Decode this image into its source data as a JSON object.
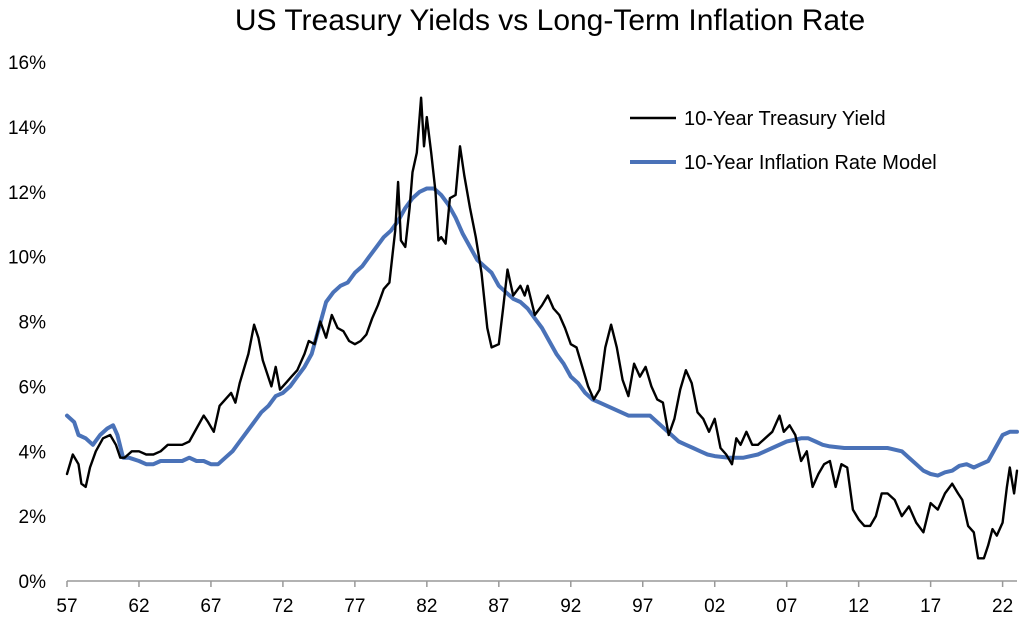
{
  "chart_data": {
    "type": "line",
    "title": "US Treasury Yields vs Long-Term Inflation Rate",
    "xlabel": "",
    "ylabel": "",
    "xlim": [
      1957,
      2023
    ],
    "ylim": [
      0,
      16
    ],
    "x_tick_values": [
      1957,
      1962,
      1967,
      1972,
      1977,
      1982,
      1987,
      1992,
      1997,
      2002,
      2007,
      2012,
      2017,
      2022
    ],
    "x_tick_labels": [
      "57",
      "62",
      "67",
      "72",
      "77",
      "82",
      "87",
      "92",
      "97",
      "02",
      "07",
      "12",
      "17",
      "22"
    ],
    "y_tick_values": [
      0,
      2,
      4,
      6,
      8,
      10,
      12,
      14,
      16
    ],
    "y_tick_labels": [
      "0%",
      "2%",
      "4%",
      "6%",
      "8%",
      "10%",
      "12%",
      "14%",
      "16%"
    ],
    "grid": false,
    "legend_position": "top-right",
    "series": [
      {
        "name": "10-Year Treasury Yield",
        "color": "#000000",
        "points": [
          [
            1957.0,
            3.3
          ],
          [
            1957.4,
            3.9
          ],
          [
            1957.8,
            3.6
          ],
          [
            1958.0,
            3.0
          ],
          [
            1958.3,
            2.9
          ],
          [
            1958.6,
            3.5
          ],
          [
            1959.0,
            4.0
          ],
          [
            1959.5,
            4.4
          ],
          [
            1960.0,
            4.5
          ],
          [
            1960.4,
            4.2
          ],
          [
            1960.7,
            3.8
          ],
          [
            1961.0,
            3.8
          ],
          [
            1961.5,
            4.0
          ],
          [
            1962.0,
            4.0
          ],
          [
            1962.5,
            3.9
          ],
          [
            1963.0,
            3.9
          ],
          [
            1963.5,
            4.0
          ],
          [
            1964.0,
            4.2
          ],
          [
            1964.5,
            4.2
          ],
          [
            1965.0,
            4.2
          ],
          [
            1965.5,
            4.3
          ],
          [
            1966.0,
            4.7
          ],
          [
            1966.5,
            5.1
          ],
          [
            1966.8,
            4.9
          ],
          [
            1967.2,
            4.6
          ],
          [
            1967.6,
            5.4
          ],
          [
            1968.0,
            5.6
          ],
          [
            1968.4,
            5.8
          ],
          [
            1968.7,
            5.5
          ],
          [
            1969.0,
            6.1
          ],
          [
            1969.6,
            7.0
          ],
          [
            1970.0,
            7.9
          ],
          [
            1970.3,
            7.5
          ],
          [
            1970.6,
            6.8
          ],
          [
            1970.9,
            6.4
          ],
          [
            1971.2,
            6.0
          ],
          [
            1971.5,
            6.6
          ],
          [
            1971.8,
            5.9
          ],
          [
            1972.2,
            6.1
          ],
          [
            1972.6,
            6.3
          ],
          [
            1973.0,
            6.5
          ],
          [
            1973.5,
            7.0
          ],
          [
            1973.8,
            7.4
          ],
          [
            1974.2,
            7.3
          ],
          [
            1974.6,
            8.0
          ],
          [
            1975.0,
            7.5
          ],
          [
            1975.4,
            8.2
          ],
          [
            1975.8,
            7.8
          ],
          [
            1976.2,
            7.7
          ],
          [
            1976.6,
            7.4
          ],
          [
            1977.0,
            7.3
          ],
          [
            1977.4,
            7.4
          ],
          [
            1977.8,
            7.6
          ],
          [
            1978.2,
            8.1
          ],
          [
            1978.6,
            8.5
          ],
          [
            1979.0,
            9.0
          ],
          [
            1979.4,
            9.2
          ],
          [
            1979.6,
            10.0
          ],
          [
            1979.8,
            10.8
          ],
          [
            1980.0,
            12.3
          ],
          [
            1980.2,
            10.5
          ],
          [
            1980.5,
            10.3
          ],
          [
            1980.8,
            11.5
          ],
          [
            1981.0,
            12.6
          ],
          [
            1981.3,
            13.2
          ],
          [
            1981.6,
            14.9
          ],
          [
            1981.8,
            13.4
          ],
          [
            1982.0,
            14.3
          ],
          [
            1982.3,
            13.2
          ],
          [
            1982.6,
            12.0
          ],
          [
            1982.8,
            10.5
          ],
          [
            1983.0,
            10.6
          ],
          [
            1983.3,
            10.4
          ],
          [
            1983.6,
            11.8
          ],
          [
            1984.0,
            11.9
          ],
          [
            1984.3,
            13.4
          ],
          [
            1984.6,
            12.5
          ],
          [
            1985.0,
            11.5
          ],
          [
            1985.4,
            10.6
          ],
          [
            1985.8,
            9.5
          ],
          [
            1986.2,
            7.8
          ],
          [
            1986.5,
            7.2
          ],
          [
            1987.0,
            7.3
          ],
          [
            1987.3,
            8.4
          ],
          [
            1987.6,
            9.6
          ],
          [
            1988.0,
            8.8
          ],
          [
            1988.5,
            9.1
          ],
          [
            1988.8,
            8.8
          ],
          [
            1989.0,
            9.1
          ],
          [
            1989.5,
            8.2
          ],
          [
            1990.0,
            8.5
          ],
          [
            1990.4,
            8.8
          ],
          [
            1990.8,
            8.4
          ],
          [
            1991.2,
            8.2
          ],
          [
            1991.6,
            7.8
          ],
          [
            1992.0,
            7.3
          ],
          [
            1992.4,
            7.2
          ],
          [
            1992.8,
            6.6
          ],
          [
            1993.2,
            6.0
          ],
          [
            1993.6,
            5.6
          ],
          [
            1994.0,
            5.9
          ],
          [
            1994.4,
            7.2
          ],
          [
            1994.8,
            7.9
          ],
          [
            1995.2,
            7.2
          ],
          [
            1995.6,
            6.2
          ],
          [
            1996.0,
            5.7
          ],
          [
            1996.4,
            6.7
          ],
          [
            1996.8,
            6.3
          ],
          [
            1997.2,
            6.6
          ],
          [
            1997.6,
            6.0
          ],
          [
            1998.0,
            5.6
          ],
          [
            1998.4,
            5.5
          ],
          [
            1998.8,
            4.5
          ],
          [
            1999.2,
            5.0
          ],
          [
            1999.6,
            5.9
          ],
          [
            2000.0,
            6.5
          ],
          [
            2000.4,
            6.1
          ],
          [
            2000.8,
            5.2
          ],
          [
            2001.2,
            5.0
          ],
          [
            2001.6,
            4.6
          ],
          [
            2002.0,
            5.0
          ],
          [
            2002.4,
            4.1
          ],
          [
            2002.8,
            3.9
          ],
          [
            2003.2,
            3.6
          ],
          [
            2003.5,
            4.4
          ],
          [
            2003.8,
            4.2
          ],
          [
            2004.2,
            4.6
          ],
          [
            2004.6,
            4.2
          ],
          [
            2005.0,
            4.2
          ],
          [
            2005.5,
            4.4
          ],
          [
            2006.0,
            4.6
          ],
          [
            2006.5,
            5.1
          ],
          [
            2006.8,
            4.6
          ],
          [
            2007.2,
            4.8
          ],
          [
            2007.6,
            4.5
          ],
          [
            2008.0,
            3.7
          ],
          [
            2008.4,
            4.0
          ],
          [
            2008.8,
            2.9
          ],
          [
            2009.2,
            3.3
          ],
          [
            2009.6,
            3.6
          ],
          [
            2010.0,
            3.7
          ],
          [
            2010.4,
            2.9
          ],
          [
            2010.8,
            3.6
          ],
          [
            2011.2,
            3.5
          ],
          [
            2011.6,
            2.2
          ],
          [
            2012.0,
            1.9
          ],
          [
            2012.4,
            1.7
          ],
          [
            2012.8,
            1.7
          ],
          [
            2013.2,
            2.0
          ],
          [
            2013.6,
            2.7
          ],
          [
            2014.0,
            2.7
          ],
          [
            2014.5,
            2.5
          ],
          [
            2015.0,
            2.0
          ],
          [
            2015.5,
            2.3
          ],
          [
            2016.0,
            1.8
          ],
          [
            2016.5,
            1.5
          ],
          [
            2017.0,
            2.4
          ],
          [
            2017.5,
            2.2
          ],
          [
            2018.0,
            2.7
          ],
          [
            2018.5,
            3.0
          ],
          [
            2018.9,
            2.7
          ],
          [
            2019.2,
            2.5
          ],
          [
            2019.6,
            1.7
          ],
          [
            2020.0,
            1.5
          ],
          [
            2020.3,
            0.7
          ],
          [
            2020.7,
            0.7
          ],
          [
            2021.0,
            1.1
          ],
          [
            2021.3,
            1.6
          ],
          [
            2021.6,
            1.4
          ],
          [
            2022.0,
            1.8
          ],
          [
            2022.3,
            2.9
          ],
          [
            2022.5,
            3.5
          ],
          [
            2022.8,
            2.7
          ],
          [
            2023.0,
            3.4
          ]
        ]
      },
      {
        "name": "10-Year Inflation Rate Model",
        "color": "#4a72b8",
        "points": [
          [
            1957.0,
            5.1
          ],
          [
            1957.5,
            4.9
          ],
          [
            1957.8,
            4.5
          ],
          [
            1958.3,
            4.4
          ],
          [
            1958.8,
            4.2
          ],
          [
            1959.3,
            4.5
          ],
          [
            1959.8,
            4.7
          ],
          [
            1960.2,
            4.8
          ],
          [
            1960.5,
            4.5
          ],
          [
            1960.9,
            3.8
          ],
          [
            1961.3,
            3.8
          ],
          [
            1962.0,
            3.7
          ],
          [
            1962.5,
            3.6
          ],
          [
            1963.0,
            3.6
          ],
          [
            1963.5,
            3.7
          ],
          [
            1964.0,
            3.7
          ],
          [
            1965.0,
            3.7
          ],
          [
            1965.5,
            3.8
          ],
          [
            1966.0,
            3.7
          ],
          [
            1966.5,
            3.7
          ],
          [
            1967.0,
            3.6
          ],
          [
            1967.5,
            3.6
          ],
          [
            1968.0,
            3.8
          ],
          [
            1968.5,
            4.0
          ],
          [
            1969.0,
            4.3
          ],
          [
            1969.5,
            4.6
          ],
          [
            1970.0,
            4.9
          ],
          [
            1970.5,
            5.2
          ],
          [
            1971.0,
            5.4
          ],
          [
            1971.5,
            5.7
          ],
          [
            1972.0,
            5.8
          ],
          [
            1972.5,
            6.0
          ],
          [
            1973.0,
            6.3
          ],
          [
            1973.5,
            6.6
          ],
          [
            1974.0,
            7.0
          ],
          [
            1974.5,
            7.8
          ],
          [
            1975.0,
            8.6
          ],
          [
            1975.5,
            8.9
          ],
          [
            1976.0,
            9.1
          ],
          [
            1976.5,
            9.2
          ],
          [
            1977.0,
            9.5
          ],
          [
            1977.5,
            9.7
          ],
          [
            1978.0,
            10.0
          ],
          [
            1978.5,
            10.3
          ],
          [
            1979.0,
            10.6
          ],
          [
            1979.5,
            10.8
          ],
          [
            1980.0,
            11.1
          ],
          [
            1980.5,
            11.5
          ],
          [
            1981.0,
            11.8
          ],
          [
            1981.5,
            12.0
          ],
          [
            1982.0,
            12.1
          ],
          [
            1982.5,
            12.1
          ],
          [
            1983.0,
            11.9
          ],
          [
            1983.5,
            11.6
          ],
          [
            1984.0,
            11.2
          ],
          [
            1984.5,
            10.7
          ],
          [
            1985.0,
            10.3
          ],
          [
            1985.5,
            9.9
          ],
          [
            1986.0,
            9.7
          ],
          [
            1986.5,
            9.5
          ],
          [
            1987.0,
            9.1
          ],
          [
            1987.5,
            8.9
          ],
          [
            1988.0,
            8.7
          ],
          [
            1988.5,
            8.6
          ],
          [
            1989.0,
            8.4
          ],
          [
            1989.5,
            8.1
          ],
          [
            1990.0,
            7.8
          ],
          [
            1990.5,
            7.4
          ],
          [
            1991.0,
            7.0
          ],
          [
            1991.5,
            6.7
          ],
          [
            1992.0,
            6.3
          ],
          [
            1992.5,
            6.1
          ],
          [
            1993.0,
            5.8
          ],
          [
            1993.5,
            5.6
          ],
          [
            1994.0,
            5.5
          ],
          [
            1994.5,
            5.4
          ],
          [
            1995.0,
            5.3
          ],
          [
            1995.5,
            5.2
          ],
          [
            1996.0,
            5.1
          ],
          [
            1997.0,
            5.1
          ],
          [
            1997.5,
            5.1
          ],
          [
            1998.0,
            4.9
          ],
          [
            1998.5,
            4.7
          ],
          [
            1999.0,
            4.5
          ],
          [
            1999.5,
            4.3
          ],
          [
            2000.0,
            4.2
          ],
          [
            2000.5,
            4.1
          ],
          [
            2001.0,
            4.0
          ],
          [
            2001.5,
            3.9
          ],
          [
            2002.0,
            3.85
          ],
          [
            2003.0,
            3.8
          ],
          [
            2004.0,
            3.8
          ],
          [
            2005.0,
            3.9
          ],
          [
            2006.0,
            4.1
          ],
          [
            2007.0,
            4.3
          ],
          [
            2007.5,
            4.35
          ],
          [
            2008.0,
            4.4
          ],
          [
            2008.5,
            4.4
          ],
          [
            2009.0,
            4.3
          ],
          [
            2009.5,
            4.2
          ],
          [
            2010.0,
            4.15
          ],
          [
            2011.0,
            4.1
          ],
          [
            2012.0,
            4.1
          ],
          [
            2013.0,
            4.1
          ],
          [
            2014.0,
            4.1
          ],
          [
            2015.0,
            4.0
          ],
          [
            2015.5,
            3.8
          ],
          [
            2016.0,
            3.6
          ],
          [
            2016.5,
            3.4
          ],
          [
            2017.0,
            3.3
          ],
          [
            2017.5,
            3.25
          ],
          [
            2018.0,
            3.35
          ],
          [
            2018.5,
            3.4
          ],
          [
            2019.0,
            3.55
          ],
          [
            2019.5,
            3.6
          ],
          [
            2020.0,
            3.5
          ],
          [
            2020.5,
            3.6
          ],
          [
            2021.0,
            3.7
          ],
          [
            2021.5,
            4.1
          ],
          [
            2022.0,
            4.5
          ],
          [
            2022.5,
            4.6
          ],
          [
            2023.0,
            4.6
          ]
        ]
      }
    ]
  }
}
